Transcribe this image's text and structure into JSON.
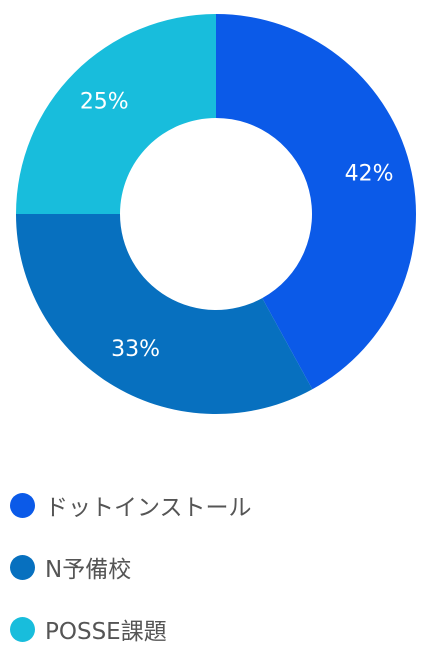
{
  "chart_data": {
    "type": "pie",
    "categories": [
      "ドットインストール",
      "N予備校",
      "POSSE課題"
    ],
    "values": [
      42,
      33,
      25
    ],
    "labels": [
      "42%",
      "33%",
      "25%"
    ],
    "colors": [
      "#0b5ae8",
      "#0770bf",
      "#18bddc"
    ],
    "legend_position": "bottom",
    "title": "",
    "xlabel": "",
    "ylabel": ""
  }
}
